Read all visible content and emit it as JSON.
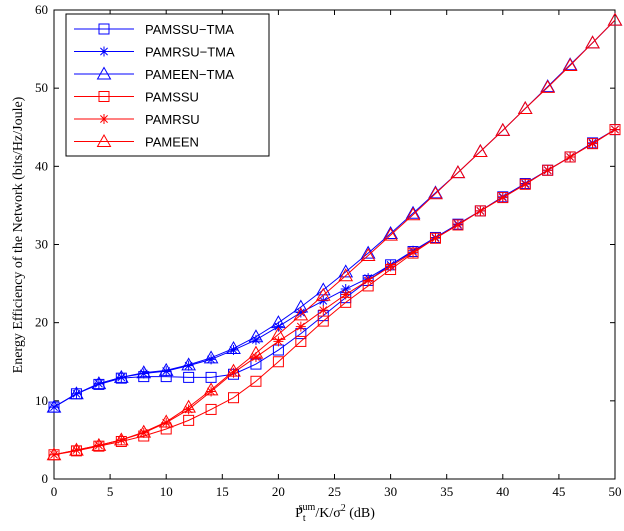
{
  "chart_data": {
    "type": "line",
    "xlabel": "P_t^sum/K/σ² (dB)",
    "xlabel_parts": {
      "base": "P",
      "sub": "t",
      "sup": "sum",
      "rest": "/K/σ",
      "sup2": "2",
      "tail": " (dB)"
    },
    "ylabel": "Energy Efficiency of the Network (bits/Hz/Joule)",
    "xlim": [
      0,
      50
    ],
    "ylim": [
      0,
      60
    ],
    "xticks": [
      0,
      5,
      10,
      15,
      20,
      25,
      30,
      35,
      40,
      45,
      50
    ],
    "yticks": [
      0,
      10,
      20,
      30,
      40,
      50,
      60
    ],
    "grid": false,
    "legend_position": "top-left",
    "x": [
      0,
      2,
      4,
      6,
      8,
      10,
      12,
      14,
      16,
      18,
      20,
      22,
      24,
      26,
      28,
      30,
      32,
      34,
      36,
      38,
      40,
      42,
      44,
      46,
      48,
      50
    ],
    "series": [
      {
        "name": "PAMSSU−TMA",
        "color": "#0000ff",
        "marker": "square",
        "values": [
          9.2,
          10.9,
          12.1,
          12.9,
          13.1,
          13.1,
          13.0,
          13.0,
          13.4,
          14.7,
          16.5,
          18.6,
          20.9,
          23.2,
          25.4,
          27.4,
          29.1,
          30.9,
          32.6,
          34.3,
          36.1,
          37.8,
          39.5,
          41.2,
          43.0,
          44.7
        ]
      },
      {
        "name": "PAMRSU−TMA",
        "color": "#0000ff",
        "marker": "star",
        "values": [
          9.2,
          10.9,
          12.2,
          13.0,
          13.5,
          13.8,
          14.5,
          15.3,
          16.5,
          17.8,
          19.5,
          21.3,
          22.8,
          24.3,
          25.7,
          27.4,
          29.2,
          30.9,
          32.6,
          34.3,
          36.1,
          37.8,
          39.5,
          41.2,
          43.0,
          44.7
        ]
      },
      {
        "name": "PAMEEN−TMA",
        "color": "#0000ff",
        "marker": "triangle",
        "values": [
          9.2,
          10.9,
          12.2,
          13.0,
          13.6,
          13.9,
          14.6,
          15.5,
          16.7,
          18.2,
          20.0,
          22.0,
          24.2,
          26.5,
          28.9,
          31.4,
          34.0,
          36.6,
          39.2,
          41.9,
          44.6,
          47.4,
          50.2,
          53.0,
          55.8,
          58.7
        ]
      },
      {
        "name": "PAMSSU",
        "color": "#ff0000",
        "marker": "square",
        "values": [
          3.1,
          3.6,
          4.2,
          4.8,
          5.5,
          6.4,
          7.5,
          8.9,
          10.4,
          12.5,
          15.0,
          17.6,
          20.2,
          22.6,
          24.7,
          26.8,
          28.9,
          30.8,
          32.5,
          34.3,
          36.0,
          37.7,
          39.5,
          41.2,
          42.9,
          44.7
        ]
      },
      {
        "name": "PAMRSU",
        "color": "#ff0000",
        "marker": "star",
        "values": [
          3.1,
          3.7,
          4.3,
          5.0,
          5.9,
          7.2,
          8.9,
          11.2,
          13.6,
          15.6,
          17.6,
          19.5,
          21.6,
          23.6,
          25.4,
          27.2,
          29.0,
          30.8,
          32.5,
          34.3,
          36.0,
          37.7,
          39.5,
          41.2,
          42.9,
          44.7
        ]
      },
      {
        "name": "PAMEEN",
        "color": "#ff0000",
        "marker": "triangle",
        "values": [
          3.1,
          3.7,
          4.3,
          5.0,
          6.0,
          7.3,
          9.2,
          11.4,
          13.8,
          16.1,
          18.5,
          21.0,
          23.5,
          26.0,
          28.6,
          31.2,
          33.8,
          36.5,
          39.2,
          41.9,
          44.6,
          47.4,
          50.1,
          52.9,
          55.8,
          58.7
        ]
      }
    ]
  }
}
